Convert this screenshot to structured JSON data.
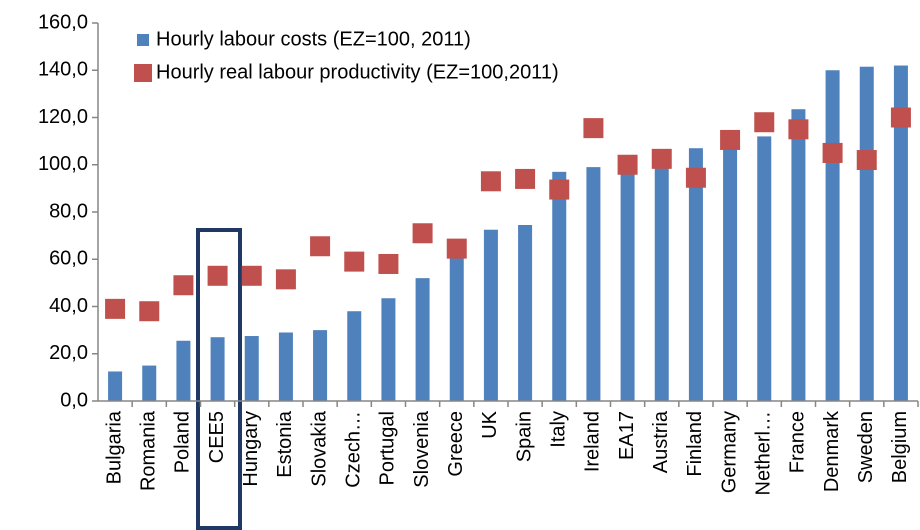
{
  "chart_data": {
    "type": "bar",
    "categories": [
      "Bulgaria",
      "Romania",
      "Poland",
      "CEE5",
      "Hungary",
      "Estonia",
      "Slovakia",
      "Czech…",
      "Portugal",
      "Slovenia",
      "Greece",
      "UK",
      "Spain",
      "Italy",
      "Ireland",
      "EA17",
      "Austria",
      "Finland",
      "Germany",
      "Netherl…",
      "France",
      "Denmark",
      "Sweden",
      "Belgium"
    ],
    "series": [
      {
        "name": "Hourly labour costs (EZ=100, 2011)",
        "type": "bar",
        "color": "#4f81bd",
        "values": [
          12.5,
          15,
          25.5,
          27,
          27.5,
          29,
          30,
          38,
          43.5,
          52,
          62,
          72.5,
          74.5,
          97,
          99,
          100,
          100,
          107,
          110,
          112,
          123.5,
          140,
          141.5,
          142
        ]
      },
      {
        "name": "Hourly real labour productivity (EZ=100,2011)",
        "type": "scatter",
        "color": "#c0504d",
        "values": [
          39,
          38,
          49,
          53,
          53,
          51.5,
          65.5,
          59,
          58,
          71,
          64.5,
          93,
          94,
          89.5,
          115.5,
          100,
          102.5,
          94.5,
          110.5,
          118,
          115,
          105,
          102,
          120
        ]
      }
    ],
    "ylim": [
      0,
      160
    ],
    "yticks": [
      {
        "value": 0,
        "label": "0,0"
      },
      {
        "value": 20,
        "label": "20,0"
      },
      {
        "value": 40,
        "label": "40,0"
      },
      {
        "value": 60,
        "label": "60,0"
      },
      {
        "value": 80,
        "label": "80,0"
      },
      {
        "value": 100,
        "label": "100,0"
      },
      {
        "value": 120,
        "label": "120,0"
      },
      {
        "value": 140,
        "label": "140,0"
      },
      {
        "value": 160,
        "label": "160,0"
      }
    ]
  }
}
